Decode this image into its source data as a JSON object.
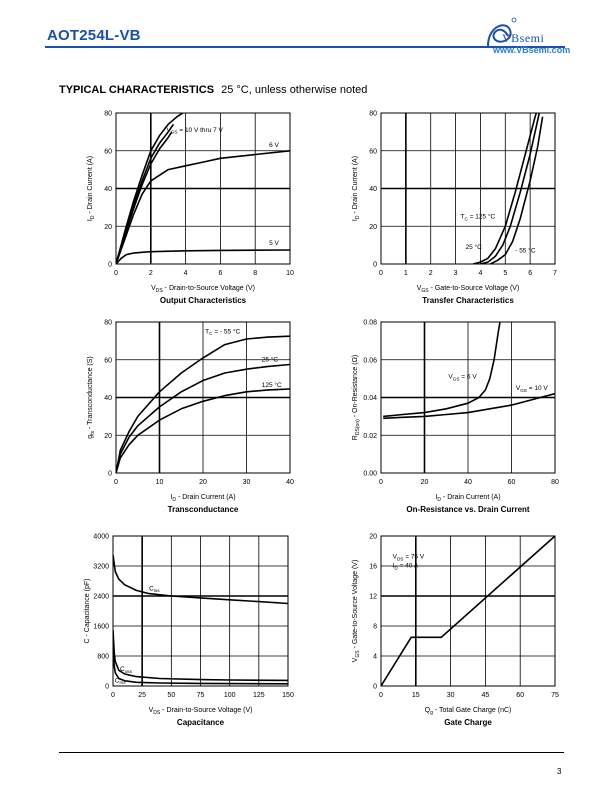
{
  "header": {
    "title": "AOT254L-VB",
    "brand": "VBsemi",
    "url": "www.VBsemi.com"
  },
  "section": {
    "heading": "TYPICAL CHARACTERISTICS",
    "note": "25 °C, unless otherwise noted"
  },
  "footer": {
    "page": "3"
  },
  "colors": {
    "header_blue": "#1a4fb5",
    "url_blue": "#2a7fd4",
    "curve": "#000000"
  },
  "chart_data": [
    {
      "id": "output",
      "type": "line",
      "title": "Output Characteristics",
      "xlabel": {
        "main": "V",
        "sub": "DS",
        "rest": " - Drain-to-Source Voltage (V)"
      },
      "ylabel": {
        "main": "I",
        "sub": "D",
        "rest": " - Drain Current (A)"
      },
      "xlim": [
        0,
        10
      ],
      "ylim": [
        0,
        80
      ],
      "xticks": [
        0,
        2,
        4,
        6,
        8,
        10
      ],
      "yticks": [
        0,
        20,
        40,
        60,
        80
      ],
      "series": [
        {
          "name": "VGS = 10 V thru 7 V",
          "x": [
            0,
            0.5,
            1,
            1.5,
            2,
            2.5,
            3,
            3.5,
            4,
            4.3
          ],
          "y": [
            0,
            17,
            33,
            47,
            60,
            68,
            74,
            78,
            81,
            83
          ]
        },
        {
          "x": [
            0,
            0.5,
            1,
            1.5,
            2,
            2.5,
            3,
            3.3
          ],
          "y": [
            0,
            16,
            31,
            44,
            56,
            64,
            70,
            74
          ]
        },
        {
          "x": [
            0,
            0.5,
            1,
            1.5,
            2,
            2.5,
            3,
            3.2
          ],
          "y": [
            0,
            15,
            29,
            42,
            53,
            61,
            67,
            70
          ]
        },
        {
          "name": "6 V",
          "x": [
            0,
            0.5,
            1,
            1.5,
            2,
            3,
            4,
            5,
            6,
            8,
            10
          ],
          "y": [
            0,
            13,
            26,
            37,
            44,
            50,
            52,
            54,
            56,
            58,
            60
          ]
        },
        {
          "name": "5 V",
          "x": [
            0,
            0.3,
            0.6,
            1,
            1.5,
            2,
            4,
            6,
            8,
            10
          ],
          "y": [
            0,
            3,
            5,
            5.8,
            6.2,
            6.5,
            7,
            7.2,
            7.3,
            7.4
          ]
        }
      ],
      "annotations": [
        {
          "main": "V",
          "sub": "GS",
          "rest": " = 10 V thru 7 V",
          "x": 2.9,
          "y": 70
        },
        {
          "main": "6 V",
          "x": 8.8,
          "y": 62
        },
        {
          "main": "5 V",
          "x": 8.8,
          "y": 10
        }
      ]
    },
    {
      "id": "transfer",
      "type": "line",
      "title": "Transfer Characteristics",
      "xlabel": {
        "main": "V",
        "sub": "GS",
        "rest": " - Gate-to-Source Voltage (V)"
      },
      "ylabel": {
        "main": "I",
        "sub": "D",
        "rest": " - Drain Current (A)"
      },
      "xlim": [
        0,
        7
      ],
      "ylim": [
        0,
        80
      ],
      "xticks": [
        0,
        1,
        2,
        3,
        4,
        5,
        6,
        7
      ],
      "yticks": [
        0,
        20,
        40,
        60,
        80
      ],
      "series": [
        {
          "name": "TC = 125 °C",
          "x": [
            3.7,
            4.0,
            4.3,
            4.6,
            5.0,
            5.4,
            5.8,
            6.2,
            6.3
          ],
          "y": [
            0,
            1,
            3,
            8,
            20,
            38,
            58,
            78,
            82
          ]
        },
        {
          "name": "25 °C",
          "x": [
            4.0,
            4.3,
            4.6,
            4.9,
            5.2,
            5.6,
            6.0,
            6.3,
            6.4
          ],
          "y": [
            0,
            1,
            4,
            10,
            20,
            38,
            58,
            76,
            82
          ]
        },
        {
          "name": "- 55 °C",
          "x": [
            4.4,
            4.7,
            5.0,
            5.3,
            5.6,
            6.0,
            6.3,
            6.5
          ],
          "y": [
            0,
            2,
            5,
            12,
            24,
            44,
            62,
            78
          ]
        }
      ],
      "annotations": [
        {
          "main": "T",
          "sub": "C",
          "rest": " = 125 °C",
          "x": 3.2,
          "y": 24
        },
        {
          "main": "25 °C",
          "x": 3.4,
          "y": 8
        },
        {
          "main": "- 55 °C",
          "x": 5.4,
          "y": 6
        }
      ]
    },
    {
      "id": "transconductance",
      "type": "line",
      "title": "Transconductance",
      "xlabel": {
        "main": "I",
        "sub": "D",
        "rest": " - Drain Current (A)"
      },
      "ylabel": {
        "main": "g",
        "sub": "fs",
        "rest": " - Transconductance (S)"
      },
      "xlim": [
        0,
        40
      ],
      "ylim": [
        0,
        80
      ],
      "xticks": [
        0,
        10,
        20,
        30,
        40
      ],
      "yticks": [
        0,
        20,
        40,
        60,
        80
      ],
      "series": [
        {
          "name": "TC = - 55 °C",
          "x": [
            0,
            1,
            3,
            5,
            10,
            15,
            20,
            25,
            30,
            35,
            40
          ],
          "y": [
            0,
            12,
            22,
            30,
            43,
            53,
            61,
            68,
            71,
            72,
            72.5
          ]
        },
        {
          "name": "25 °C",
          "x": [
            0,
            1,
            3,
            5,
            10,
            15,
            20,
            25,
            30,
            35,
            40
          ],
          "y": [
            0,
            10,
            19,
            25,
            35,
            43,
            49,
            53,
            55,
            56.5,
            57.5
          ]
        },
        {
          "name": "125 °C",
          "x": [
            0,
            1,
            3,
            5,
            10,
            15,
            20,
            25,
            30,
            35,
            40
          ],
          "y": [
            0,
            8,
            15,
            20,
            28,
            34,
            38,
            41,
            43,
            44,
            44.5
          ]
        }
      ],
      "annotations": [
        {
          "main": "T",
          "sub": "C",
          "rest": " = - 55 °C",
          "x": 20.5,
          "y": 74
        },
        {
          "main": "25 °C",
          "x": 33.5,
          "y": 59
        },
        {
          "main": "125 °C",
          "x": 33.5,
          "y": 45.5
        }
      ]
    },
    {
      "id": "on_resistance",
      "type": "line",
      "title": "On-Resistance vs. Drain Current",
      "xlabel": {
        "main": "I",
        "sub": "D",
        "rest": " - Drain Current (A)"
      },
      "ylabel": {
        "main": "R",
        "sub": "DS(on)",
        "rest": " - On-Resistance (Ω)"
      },
      "xlim": [
        0,
        80
      ],
      "ylim": [
        0,
        0.08
      ],
      "xticks": [
        0,
        20,
        40,
        60,
        80
      ],
      "yticks": [
        0.0,
        0.02,
        0.04,
        0.06,
        0.08
      ],
      "ytick_labels": [
        "0.00",
        "0.02",
        "0.04",
        "0.06",
        "0.08"
      ],
      "series": [
        {
          "name": "VGS = 6 V",
          "x": [
            1,
            10,
            20,
            30,
            40,
            45,
            48,
            50,
            52,
            54,
            55
          ],
          "y": [
            0.03,
            0.031,
            0.032,
            0.034,
            0.037,
            0.04,
            0.044,
            0.05,
            0.06,
            0.075,
            0.082
          ]
        },
        {
          "name": "VGS = 10 V",
          "x": [
            1,
            10,
            20,
            30,
            40,
            50,
            60,
            70,
            80
          ],
          "y": [
            0.029,
            0.0295,
            0.03,
            0.031,
            0.032,
            0.034,
            0.036,
            0.039,
            0.042
          ]
        }
      ],
      "annotations": [
        {
          "main": "V",
          "sub": "GS",
          "rest": " = 6 V",
          "x": 31,
          "y": 0.05
        },
        {
          "main": "V",
          "sub": "GS",
          "rest": " = 10 V",
          "x": 62,
          "y": 0.044
        }
      ]
    },
    {
      "id": "capacitance",
      "type": "line",
      "title": "Capacitance",
      "xlabel": {
        "main": "V",
        "sub": "DS",
        "rest": " - Drain-to-Source Voltage (V)"
      },
      "ylabel": {
        "main": "C",
        "sub": "",
        "rest": " - Capacitance (pF)"
      },
      "xlim": [
        0,
        150
      ],
      "ylim": [
        0,
        4000
      ],
      "xticks": [
        0,
        25,
        50,
        75,
        100,
        125,
        150
      ],
      "yticks": [
        0,
        800,
        1600,
        2400,
        3200,
        4000
      ],
      "series": [
        {
          "name": "Ciss",
          "x": [
            0,
            2,
            5,
            10,
            20,
            30,
            50,
            75,
            100,
            125,
            150
          ],
          "y": [
            3500,
            3050,
            2850,
            2700,
            2550,
            2470,
            2400,
            2350,
            2300,
            2250,
            2200
          ]
        },
        {
          "name": "Coss",
          "x": [
            0,
            1,
            2,
            5,
            10,
            20,
            40,
            75,
            100,
            150
          ],
          "y": [
            1500,
            900,
            650,
            420,
            320,
            250,
            200,
            170,
            160,
            150
          ]
        },
        {
          "name": "Crss",
          "x": [
            0,
            1,
            2,
            5,
            10,
            20,
            40,
            75,
            100,
            150
          ],
          "y": [
            1000,
            550,
            350,
            200,
            140,
            100,
            80,
            70,
            65,
            60
          ]
        }
      ],
      "annotations": [
        {
          "main": "C",
          "sub": "iss",
          "rest": "",
          "x": 31,
          "y": 2550
        },
        {
          "main": "C",
          "sub": "oss",
          "rest": "",
          "x": 6,
          "y": 400
        },
        {
          "main": "C",
          "sub": "rss",
          "rest": "",
          "x": 1.5,
          "y": 100
        }
      ]
    },
    {
      "id": "gate_charge",
      "type": "line",
      "title": "Gate Charge",
      "xlabel": {
        "main": "Q",
        "sub": "g",
        "rest": " - Total Gate Charge (nC)"
      },
      "ylabel": {
        "main": "V",
        "sub": "GS",
        "rest": " - Gate-to-Source Voltage (V)"
      },
      "xlim": [
        0,
        75
      ],
      "ylim": [
        0,
        20
      ],
      "xticks": [
        0,
        15,
        30,
        45,
        60,
        75
      ],
      "yticks": [
        0,
        4,
        8,
        12,
        16,
        20
      ],
      "series": [
        {
          "name": "VGS",
          "x": [
            0,
            13,
            26,
            75
          ],
          "y": [
            0,
            6.5,
            6.5,
            20
          ]
        }
      ],
      "annotations": [
        {
          "main": "V",
          "sub": "DS",
          "rest": " = 75 V",
          "x": 5,
          "y": 17
        },
        {
          "main": "I",
          "sub": "D",
          "rest": " = 40 A",
          "x": 5,
          "y": 15.8
        }
      ]
    }
  ]
}
